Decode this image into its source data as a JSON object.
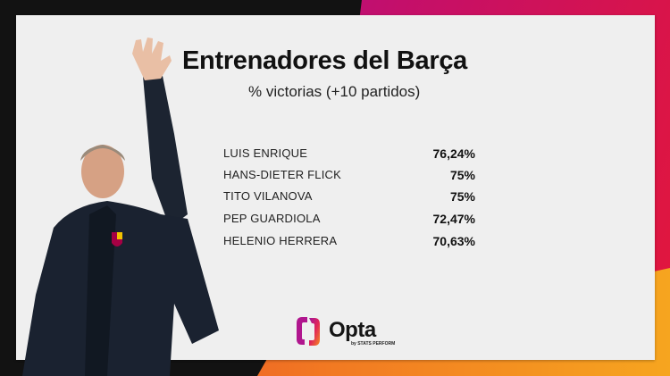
{
  "header": {
    "title": "Entrenadores del Barça",
    "subtitle": "% victorias (+10 partidos)"
  },
  "table": {
    "rows": [
      {
        "name": "LUIS ENRIQUE",
        "value": "76,24%"
      },
      {
        "name": "HANS-DIETER FLICK",
        "value": "75%"
      },
      {
        "name": "TITO VILANOVA",
        "value": "75%"
      },
      {
        "name": "PEP GUARDIOLA",
        "value": "72,47%"
      },
      {
        "name": "HELENIO HERRERA",
        "value": "70,63%"
      }
    ]
  },
  "branding": {
    "logo_text": "Opta",
    "logo_subtext": "by STATS PERFORM"
  },
  "colors": {
    "panel": "#efefef",
    "background": "#121212",
    "gradient_top": [
      "#9b0fa8",
      "#e3173a"
    ],
    "gradient_bottom": [
      "#e8442a",
      "#f6a51f"
    ]
  }
}
